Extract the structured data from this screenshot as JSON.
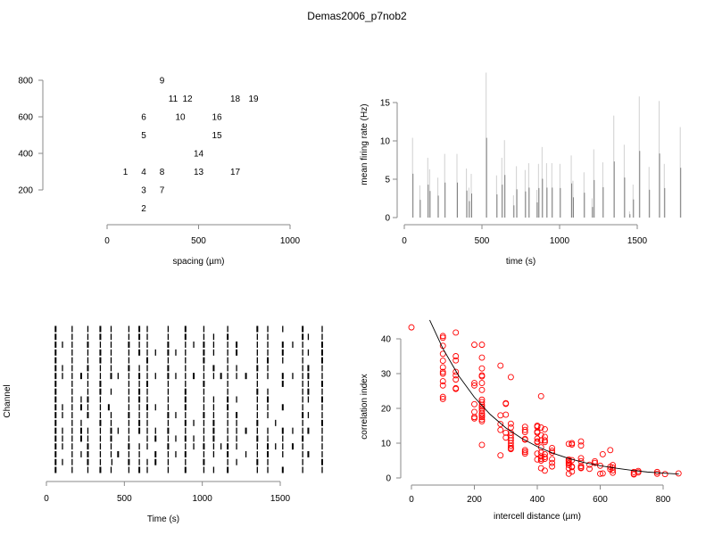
{
  "title": "Demas2006_p7nob2",
  "chart_data": [
    {
      "type": "scatter",
      "subtype": "electrode-layout",
      "xlabel": "spacing (µm)",
      "ylabel": "",
      "xlim": [
        0,
        1000
      ],
      "ylim": [
        100,
        800
      ],
      "xticks": [
        0,
        500,
        1000
      ],
      "yticks": [
        200,
        400,
        600,
        800
      ],
      "points": [
        {
          "label": "1",
          "x": 100,
          "y": 300
        },
        {
          "label": "2",
          "x": 200,
          "y": 100
        },
        {
          "label": "3",
          "x": 200,
          "y": 200
        },
        {
          "label": "4",
          "x": 200,
          "y": 300
        },
        {
          "label": "5",
          "x": 200,
          "y": 500
        },
        {
          "label": "6",
          "x": 200,
          "y": 600
        },
        {
          "label": "7",
          "x": 300,
          "y": 200
        },
        {
          "label": "8",
          "x": 300,
          "y": 300
        },
        {
          "label": "9",
          "x": 300,
          "y": 800
        },
        {
          "label": "10",
          "x": 400,
          "y": 600
        },
        {
          "label": "11",
          "x": 400,
          "y": 700
        },
        {
          "label": "12",
          "x": 400,
          "y": 700
        },
        {
          "label": "13",
          "x": 500,
          "y": 300
        },
        {
          "label": "14",
          "x": 500,
          "y": 400
        },
        {
          "label": "15",
          "x": 600,
          "y": 500
        },
        {
          "label": "16",
          "x": 600,
          "y": 600
        },
        {
          "label": "17",
          "x": 700,
          "y": 300
        },
        {
          "label": "18",
          "x": 700,
          "y": 700
        },
        {
          "label": "19",
          "x": 800,
          "y": 700
        }
      ]
    },
    {
      "type": "bar",
      "subtype": "spike-histogram",
      "xlabel": "time (s)",
      "ylabel": "mean firing rate (Hz)",
      "xlim": [
        0,
        1800
      ],
      "ylim": [
        0,
        19
      ],
      "xticks": [
        0,
        500,
        1000,
        1500
      ],
      "yticks": [
        0,
        5,
        10,
        15
      ],
      "color": "#808080",
      "x": [
        53,
        100,
        151,
        163,
        216,
        260,
        339,
        400,
        416,
        431,
        527,
        594,
        628,
        645,
        703,
        722,
        778,
        801,
        853,
        864,
        887,
        916,
        950,
        1002,
        1075,
        1086,
        1157,
        1209,
        1220,
        1278,
        1349,
        1416,
        1450,
        1473,
        1513,
        1576,
        1641,
        1674,
        1777
      ],
      "values": [
        10.4,
        4.2,
        7.8,
        6.3,
        5.2,
        8.3,
        8.3,
        6.4,
        3.9,
        5.7,
        18.9,
        5.5,
        7.8,
        10.1,
        2.9,
        6.7,
        6.2,
        7.1,
        3.6,
        7.0,
        9.2,
        7.1,
        7.1,
        7.0,
        8.1,
        4.8,
        5.9,
        2.5,
        8.9,
        7.2,
        13.3,
        9.5,
        0.8,
        4.3,
        15.8,
        6.6,
        15.2,
        7.0,
        11.8
      ]
    },
    {
      "type": "raster",
      "xlabel": "Time (s)",
      "ylabel": "Channel",
      "xlim": [
        0,
        1800
      ],
      "xticks": [
        0,
        500,
        1000,
        1500
      ],
      "channels": [
        [
          59,
          165,
          266,
          346,
          415,
          529,
          596,
          647,
          781,
          892,
          1010,
          1073,
          1163,
          1353,
          1420,
          1516,
          1644,
          1769
        ],
        [
          59,
          103,
          165,
          266,
          346,
          420,
          529,
          596,
          647,
          700,
          781,
          892,
          1010,
          1163,
          1220,
          1353,
          1420,
          1644,
          1769
        ],
        [
          59,
          165,
          223,
          266,
          346,
          415,
          460,
          529,
          596,
          700,
          781,
          830,
          892,
          1010,
          1073,
          1163,
          1280,
          1353,
          1420,
          1516,
          1644,
          1680,
          1769
        ],
        [
          59,
          103,
          165,
          266,
          346,
          415,
          529,
          596,
          647,
          781,
          892,
          945,
          1010,
          1073,
          1120,
          1163,
          1220,
          1353,
          1420,
          1470,
          1516,
          1580,
          1644,
          1769
        ],
        [
          59,
          103,
          165,
          223,
          266,
          346,
          415,
          529,
          647,
          700,
          781,
          830,
          892,
          945,
          1010,
          1073,
          1163,
          1220,
          1353,
          1420,
          1516,
          1644,
          1769
        ],
        [
          59,
          103,
          165,
          223,
          266,
          346,
          415,
          460,
          529,
          596,
          647,
          700,
          781,
          892,
          1010,
          1073,
          1163,
          1220,
          1280,
          1353,
          1420,
          1516,
          1580,
          1644,
          1680,
          1769
        ],
        [
          59,
          165,
          223,
          346,
          415,
          529,
          596,
          647,
          781,
          892,
          945,
          1010,
          1073,
          1163,
          1220,
          1353,
          1470,
          1644,
          1769
        ],
        [
          59,
          103,
          165,
          266,
          346,
          415,
          529,
          596,
          647,
          781,
          830,
          892,
          1010,
          1073,
          1163,
          1220,
          1353,
          1420,
          1644,
          1680,
          1769
        ],
        [
          59,
          103,
          165,
          223,
          266,
          346,
          400,
          529,
          596,
          647,
          700,
          781,
          892,
          1010,
          1073,
          1163,
          1353,
          1420,
          1516,
          1644,
          1769
        ],
        [
          59,
          165,
          223,
          266,
          346,
          529,
          596,
          647,
          781,
          892,
          1010,
          1073,
          1163,
          1220,
          1353,
          1420,
          1644,
          1680,
          1769
        ],
        [
          59,
          165,
          266,
          346,
          415,
          529,
          596,
          647,
          781,
          892,
          1010,
          1163,
          1353,
          1420,
          1644,
          1680,
          1769
        ],
        [
          59,
          165,
          266,
          346,
          529,
          596,
          647,
          781,
          892,
          1010,
          1163,
          1353,
          1516,
          1644,
          1680,
          1769
        ],
        [
          59,
          103,
          165,
          223,
          266,
          346,
          415,
          460,
          529,
          596,
          647,
          700,
          781,
          830,
          892,
          945,
          1010,
          1073,
          1120,
          1163,
          1220,
          1280,
          1353,
          1420,
          1516,
          1580,
          1644,
          1680,
          1769
        ],
        [
          59,
          103,
          165,
          266,
          346,
          415,
          529,
          596,
          647,
          781,
          892,
          1010,
          1073,
          1163,
          1220,
          1353,
          1420,
          1644,
          1680,
          1769
        ],
        [
          59,
          165,
          266,
          346,
          415,
          529,
          647,
          781,
          892,
          1010,
          1163,
          1353,
          1420,
          1516,
          1644,
          1769
        ],
        [
          59,
          165,
          266,
          346,
          415,
          529,
          596,
          647,
          700,
          781,
          830,
          892,
          1010,
          1073,
          1163,
          1220,
          1353,
          1420,
          1516,
          1644,
          1680,
          1769
        ],
        [
          59,
          103,
          165,
          266,
          346,
          415,
          529,
          596,
          647,
          781,
          892,
          945,
          1010,
          1073,
          1163,
          1220,
          1353,
          1420,
          1516,
          1580,
          1644,
          1769
        ],
        [
          59,
          165,
          266,
          346,
          415,
          529,
          596,
          647,
          781,
          892,
          1010,
          1073,
          1163,
          1353,
          1420,
          1644,
          1680,
          1769
        ],
        [
          59,
          165,
          266,
          346,
          415,
          529,
          596,
          647,
          781,
          892,
          1010,
          1163,
          1353,
          1420,
          1516,
          1644,
          1769
        ]
      ]
    },
    {
      "type": "scatter",
      "xlabel": "intercell distance (µm)",
      "ylabel": "correlation index",
      "xlim": [
        0,
        850
      ],
      "ylim": [
        0,
        44
      ],
      "xticks": [
        0,
        200,
        400,
        600,
        800
      ],
      "yticks": [
        0,
        10,
        20,
        30,
        40
      ],
      "point_color": "#ff0000",
      "curve_color": "#000000",
      "groups": [
        {
          "x": 0,
          "y": [
            43.3
          ]
        },
        {
          "x": 100,
          "y": [
            40.8,
            40.3,
            38,
            35.7,
            33.7,
            31.8,
            30.5,
            30,
            27.8,
            26.6,
            23.3,
            22.7
          ]
        },
        {
          "x": 141,
          "y": [
            41.8,
            35,
            33.8,
            30.5,
            29.5,
            28.3,
            25.8,
            25.6
          ]
        },
        {
          "x": 200,
          "y": [
            38.3,
            27.3,
            26.6,
            21.2,
            19,
            17.5,
            17.1
          ]
        },
        {
          "x": 224,
          "y": [
            38.3,
            34.6,
            31.5,
            29.5,
            29.2,
            27.3,
            25.3,
            22.5,
            21.8,
            21,
            20.5,
            20,
            19.3,
            18.5,
            18,
            17.5,
            16.8,
            16.3,
            9.5
          ]
        },
        {
          "x": 283,
          "y": [
            32.3,
            18,
            15.5,
            13.8,
            6.5
          ]
        },
        {
          "x": 300,
          "y": [
            21.5,
            21.3,
            18.2,
            13,
            11.6
          ]
        },
        {
          "x": 316,
          "y": [
            29,
            15.6,
            14.5,
            13,
            12.3,
            11.5,
            10.8,
            10,
            9.2,
            8.6,
            8.3
          ]
        },
        {
          "x": 361,
          "y": [
            14.7,
            13.8,
            13.2,
            11.2,
            11,
            8,
            7.5,
            7
          ]
        },
        {
          "x": 400,
          "y": [
            15,
            14.7,
            13.3,
            13,
            11.3,
            10.5,
            10.3,
            7,
            5.3
          ]
        },
        {
          "x": 412,
          "y": [
            23.5,
            14.5,
            12.3,
            10.8,
            8.8,
            7.3,
            6.2,
            5.5,
            5,
            2.8
          ]
        },
        {
          "x": 424,
          "y": [
            14,
            11.8,
            10.8,
            10.3,
            6.8,
            6,
            5.5,
            2.1
          ]
        },
        {
          "x": 447,
          "y": [
            8.6,
            7.8,
            7.3,
            5.4,
            4.3,
            3.3
          ]
        },
        {
          "x": 500,
          "y": [
            9.8,
            5.3,
            5,
            4.6,
            4.2,
            3.7,
            2.8,
            1.2
          ]
        },
        {
          "x": 510,
          "y": [
            10,
            9.6,
            5.1,
            3.3,
            3.1,
            1.8
          ]
        },
        {
          "x": 539,
          "y": [
            10.5,
            9.3,
            5.7,
            4.8,
            3.4,
            3,
            2.8
          ]
        },
        {
          "x": 566,
          "y": [
            3.8,
            2.6
          ]
        },
        {
          "x": 583,
          "y": [
            4.8,
            4.3
          ]
        },
        {
          "x": 600,
          "y": [
            3.5,
            1.2
          ]
        },
        {
          "x": 608,
          "y": [
            6.8,
            1.3
          ]
        },
        {
          "x": 632,
          "y": [
            8,
            3.2,
            2.5
          ]
        },
        {
          "x": 640,
          "y": [
            3.7,
            3,
            2.2,
            1.5
          ]
        },
        {
          "x": 707,
          "y": [
            1.7,
            1.2,
            1.0
          ]
        },
        {
          "x": 721,
          "y": [
            2,
            1.6
          ]
        },
        {
          "x": 781,
          "y": [
            1.7,
            1.2
          ]
        },
        {
          "x": 806,
          "y": [
            1.1
          ]
        },
        {
          "x": 849,
          "y": [
            1.3
          ]
        }
      ],
      "curve": {
        "x": [
          58,
          100,
          150,
          200,
          250,
          300,
          350,
          400,
          450,
          500,
          550,
          600,
          650,
          700,
          750,
          800,
          850
        ],
        "y": [
          45.4,
          37.2,
          29.4,
          23.2,
          18.3,
          14.4,
          11.4,
          9.0,
          7.1,
          5.6,
          4.4,
          3.5,
          2.8,
          2.2,
          1.7,
          1.4,
          1.1
        ]
      }
    }
  ]
}
